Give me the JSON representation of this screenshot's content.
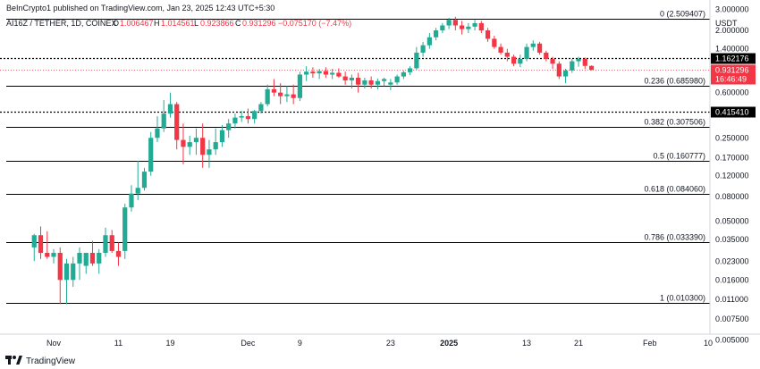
{
  "header": {
    "publisher": "BeInCrypto1 published on TradingView.com, Jan 23, 2025 12:43 UTC+5:30",
    "symbol": "AI16Z / TETHER, 1D, COINEX",
    "ohlc": [
      {
        "label": "O",
        "value": "1.006467"
      },
      {
        "label": "H",
        "value": "1.014561"
      },
      {
        "label": "L",
        "value": "0.923866"
      },
      {
        "label": "C",
        "value": "0.931296"
      }
    ],
    "change": "−0.075170 (−7.47%)"
  },
  "footer": {
    "logo_text": "TradingView"
  },
  "colors": {
    "up": "#22ab94",
    "down": "#f23645",
    "axis": "#d1d4dc",
    "fib_line": "#000000",
    "level_tag": "#000000",
    "price_tag": "#f23645"
  },
  "chart_data": {
    "type": "candlestick",
    "title": "AI16Z / TETHER, 1D, COINEX",
    "scale": "log",
    "ylim": [
      0.0056,
      3.6
    ],
    "y_axis_label": "USDT",
    "y_ticks": [
      "3.000000",
      "2.000000",
      "1.400000",
      "0.600000",
      "0.250000",
      "0.170000",
      "0.120000",
      "0.080000",
      "0.050000",
      "0.035000",
      "0.023000",
      "0.016000",
      "0.011000",
      "0.007500",
      "0.005000"
    ],
    "x_ticks": [
      {
        "label": "Nov",
        "date": "2024-11-01"
      },
      {
        "label": "11",
        "date": "2024-11-11"
      },
      {
        "label": "19",
        "date": "2024-11-19"
      },
      {
        "label": "Dec",
        "date": "2024-12-01"
      },
      {
        "label": "9",
        "date": "2024-12-09"
      },
      {
        "label": "23",
        "date": "2024-12-23"
      },
      {
        "label": "2025",
        "date": "2025-01-01",
        "bold": true
      },
      {
        "label": "13",
        "date": "2025-01-13"
      },
      {
        "label": "21",
        "date": "2025-01-21"
      },
      {
        "label": "Feb",
        "date": "2025-02-01"
      },
      {
        "label": "10",
        "date": "2025-02-10"
      }
    ],
    "fib_levels": [
      {
        "label": "0 (2.509407)",
        "value": 2.509407
      },
      {
        "label": "0.236 (0.685980)",
        "value": 0.68598
      },
      {
        "label": "0.382 (0.307506)",
        "value": 0.307506
      },
      {
        "label": "0.5 (0.160777)",
        "value": 0.160777
      },
      {
        "label": "0.618 (0.084060)",
        "value": 0.08406
      },
      {
        "label": "0.786 (0.033390)",
        "value": 0.03339
      },
      {
        "label": "1 (0.010300)",
        "value": 0.0103
      }
    ],
    "level_lines": [
      {
        "label": "1.162176",
        "value": 1.162176
      },
      {
        "label": "0.415410",
        "value": 0.41541
      }
    ],
    "last_price": {
      "label": "0.931296",
      "countdown": "16:46:49",
      "value": 0.931296
    },
    "candles": [
      {
        "date": "2024-10-29",
        "o": 0.03,
        "h": 0.039,
        "l": 0.023,
        "c": 0.038
      },
      {
        "date": "2024-10-30",
        "o": 0.038,
        "h": 0.045,
        "l": 0.024,
        "c": 0.027
      },
      {
        "date": "2024-10-31",
        "o": 0.027,
        "h": 0.041,
        "l": 0.024,
        "c": 0.025
      },
      {
        "date": "2024-11-01",
        "o": 0.025,
        "h": 0.029,
        "l": 0.022,
        "c": 0.027
      },
      {
        "date": "2024-11-02",
        "o": 0.027,
        "h": 0.03,
        "l": 0.01,
        "c": 0.016
      },
      {
        "date": "2024-11-03",
        "o": 0.016,
        "h": 0.024,
        "l": 0.01,
        "c": 0.022
      },
      {
        "date": "2024-11-04",
        "o": 0.016,
        "h": 0.025,
        "l": 0.014,
        "c": 0.022
      },
      {
        "date": "2024-11-05",
        "o": 0.022,
        "h": 0.03,
        "l": 0.016,
        "c": 0.027
      },
      {
        "date": "2024-11-06",
        "o": 0.021,
        "h": 0.027,
        "l": 0.018,
        "c": 0.027
      },
      {
        "date": "2024-11-07",
        "o": 0.027,
        "h": 0.034,
        "l": 0.021,
        "c": 0.022
      },
      {
        "date": "2024-11-08",
        "o": 0.022,
        "h": 0.029,
        "l": 0.018,
        "c": 0.027
      },
      {
        "date": "2024-11-09",
        "o": 0.027,
        "h": 0.044,
        "l": 0.025,
        "c": 0.038
      },
      {
        "date": "2024-11-10",
        "o": 0.038,
        "h": 0.042,
        "l": 0.027,
        "c": 0.028
      },
      {
        "date": "2024-11-11",
        "o": 0.028,
        "h": 0.033,
        "l": 0.021,
        "c": 0.025
      },
      {
        "date": "2024-11-12",
        "o": 0.028,
        "h": 0.07,
        "l": 0.024,
        "c": 0.065
      },
      {
        "date": "2024-11-13",
        "o": 0.065,
        "h": 0.1,
        "l": 0.06,
        "c": 0.085
      },
      {
        "date": "2024-11-14",
        "o": 0.085,
        "h": 0.16,
        "l": 0.075,
        "c": 0.095
      },
      {
        "date": "2024-11-15",
        "o": 0.095,
        "h": 0.14,
        "l": 0.09,
        "c": 0.13
      },
      {
        "date": "2024-11-16",
        "o": 0.13,
        "h": 0.28,
        "l": 0.12,
        "c": 0.25
      },
      {
        "date": "2024-11-17",
        "o": 0.25,
        "h": 0.38,
        "l": 0.23,
        "c": 0.3
      },
      {
        "date": "2024-11-18",
        "o": 0.3,
        "h": 0.52,
        "l": 0.28,
        "c": 0.4
      },
      {
        "date": "2024-11-19",
        "o": 0.4,
        "h": 0.6,
        "l": 0.37,
        "c": 0.48
      },
      {
        "date": "2024-11-20",
        "o": 0.48,
        "h": 0.5,
        "l": 0.2,
        "c": 0.24
      },
      {
        "date": "2024-11-21",
        "o": 0.24,
        "h": 0.33,
        "l": 0.15,
        "c": 0.21
      },
      {
        "date": "2024-11-22",
        "o": 0.21,
        "h": 0.26,
        "l": 0.18,
        "c": 0.23
      },
      {
        "date": "2024-11-23",
        "o": 0.23,
        "h": 0.3,
        "l": 0.18,
        "c": 0.25
      },
      {
        "date": "2024-11-24",
        "o": 0.25,
        "h": 0.33,
        "l": 0.14,
        "c": 0.18
      },
      {
        "date": "2024-11-25",
        "o": 0.18,
        "h": 0.24,
        "l": 0.14,
        "c": 0.2
      },
      {
        "date": "2024-11-26",
        "o": 0.2,
        "h": 0.3,
        "l": 0.18,
        "c": 0.23
      },
      {
        "date": "2024-11-27",
        "o": 0.23,
        "h": 0.32,
        "l": 0.21,
        "c": 0.29
      },
      {
        "date": "2024-11-28",
        "o": 0.29,
        "h": 0.36,
        "l": 0.25,
        "c": 0.33
      },
      {
        "date": "2024-11-29",
        "o": 0.33,
        "h": 0.4,
        "l": 0.3,
        "c": 0.37
      },
      {
        "date": "2024-11-30",
        "o": 0.37,
        "h": 0.42,
        "l": 0.34,
        "c": 0.38
      },
      {
        "date": "2024-12-01",
        "o": 0.38,
        "h": 0.44,
        "l": 0.33,
        "c": 0.36
      },
      {
        "date": "2024-12-02",
        "o": 0.36,
        "h": 0.43,
        "l": 0.33,
        "c": 0.42
      },
      {
        "date": "2024-12-03",
        "o": 0.42,
        "h": 0.5,
        "l": 0.4,
        "c": 0.48
      },
      {
        "date": "2024-12-04",
        "o": 0.48,
        "h": 0.7,
        "l": 0.46,
        "c": 0.64
      },
      {
        "date": "2024-12-05",
        "o": 0.64,
        "h": 0.78,
        "l": 0.56,
        "c": 0.6
      },
      {
        "date": "2024-12-06",
        "o": 0.6,
        "h": 0.72,
        "l": 0.48,
        "c": 0.56
      },
      {
        "date": "2024-12-07",
        "o": 0.56,
        "h": 0.68,
        "l": 0.5,
        "c": 0.58
      },
      {
        "date": "2024-12-08",
        "o": 0.58,
        "h": 0.7,
        "l": 0.48,
        "c": 0.54
      },
      {
        "date": "2024-12-09",
        "o": 0.54,
        "h": 0.9,
        "l": 0.51,
        "c": 0.85
      },
      {
        "date": "2024-12-10",
        "o": 0.85,
        "h": 1.0,
        "l": 0.75,
        "c": 0.9
      },
      {
        "date": "2024-12-11",
        "o": 0.9,
        "h": 0.98,
        "l": 0.8,
        "c": 0.87
      },
      {
        "date": "2024-12-12",
        "o": 0.87,
        "h": 0.95,
        "l": 0.78,
        "c": 0.91
      },
      {
        "date": "2024-12-13",
        "o": 0.91,
        "h": 0.98,
        "l": 0.8,
        "c": 0.85
      },
      {
        "date": "2024-12-14",
        "o": 0.85,
        "h": 0.95,
        "l": 0.78,
        "c": 0.88
      },
      {
        "date": "2024-12-15",
        "o": 0.88,
        "h": 0.96,
        "l": 0.8,
        "c": 0.82
      },
      {
        "date": "2024-12-16",
        "o": 0.82,
        "h": 0.9,
        "l": 0.7,
        "c": 0.76
      },
      {
        "date": "2024-12-17",
        "o": 0.76,
        "h": 0.85,
        "l": 0.65,
        "c": 0.8
      },
      {
        "date": "2024-12-18",
        "o": 0.8,
        "h": 0.88,
        "l": 0.6,
        "c": 0.7
      },
      {
        "date": "2024-12-19",
        "o": 0.7,
        "h": 0.8,
        "l": 0.65,
        "c": 0.76
      },
      {
        "date": "2024-12-20",
        "o": 0.76,
        "h": 0.82,
        "l": 0.65,
        "c": 0.7
      },
      {
        "date": "2024-12-21",
        "o": 0.7,
        "h": 0.79,
        "l": 0.64,
        "c": 0.75
      },
      {
        "date": "2024-12-22",
        "o": 0.75,
        "h": 0.8,
        "l": 0.68,
        "c": 0.78
      },
      {
        "date": "2024-12-23",
        "o": 0.7,
        "h": 0.78,
        "l": 0.63,
        "c": 0.73
      },
      {
        "date": "2024-12-24",
        "o": 0.73,
        "h": 0.85,
        "l": 0.7,
        "c": 0.82
      },
      {
        "date": "2024-12-25",
        "o": 0.82,
        "h": 0.92,
        "l": 0.78,
        "c": 0.89
      },
      {
        "date": "2024-12-26",
        "o": 0.89,
        "h": 1.0,
        "l": 0.84,
        "c": 0.96
      },
      {
        "date": "2024-12-27",
        "o": 0.96,
        "h": 1.45,
        "l": 0.93,
        "c": 1.3
      },
      {
        "date": "2024-12-28",
        "o": 1.3,
        "h": 1.6,
        "l": 1.2,
        "c": 1.5
      },
      {
        "date": "2024-12-29",
        "o": 1.5,
        "h": 1.9,
        "l": 1.4,
        "c": 1.75
      },
      {
        "date": "2024-12-30",
        "o": 1.75,
        "h": 2.1,
        "l": 1.65,
        "c": 2.0
      },
      {
        "date": "2024-12-31",
        "o": 2.0,
        "h": 2.3,
        "l": 1.9,
        "c": 2.2
      },
      {
        "date": "2025-01-01",
        "o": 2.2,
        "h": 2.55,
        "l": 2.05,
        "c": 2.45
      },
      {
        "date": "2025-01-02",
        "o": 2.45,
        "h": 2.6,
        "l": 2.0,
        "c": 2.2
      },
      {
        "date": "2025-01-03",
        "o": 2.2,
        "h": 2.4,
        "l": 1.85,
        "c": 2.05
      },
      {
        "date": "2025-01-04",
        "o": 2.05,
        "h": 2.3,
        "l": 1.9,
        "c": 2.15
      },
      {
        "date": "2025-01-05",
        "o": 2.15,
        "h": 2.45,
        "l": 2.0,
        "c": 2.3
      },
      {
        "date": "2025-01-06",
        "o": 2.3,
        "h": 2.4,
        "l": 1.9,
        "c": 2.0
      },
      {
        "date": "2025-01-07",
        "o": 2.0,
        "h": 2.1,
        "l": 1.6,
        "c": 1.7
      },
      {
        "date": "2025-01-08",
        "o": 1.7,
        "h": 1.8,
        "l": 1.4,
        "c": 1.45
      },
      {
        "date": "2025-01-09",
        "o": 1.45,
        "h": 1.55,
        "l": 1.25,
        "c": 1.3
      },
      {
        "date": "2025-01-10",
        "o": 1.3,
        "h": 1.4,
        "l": 1.1,
        "c": 1.2
      },
      {
        "date": "2025-01-11",
        "o": 1.2,
        "h": 1.25,
        "l": 1.0,
        "c": 1.05
      },
      {
        "date": "2025-01-12",
        "o": 1.05,
        "h": 1.25,
        "l": 0.98,
        "c": 1.15
      },
      {
        "date": "2025-01-13",
        "o": 1.15,
        "h": 1.55,
        "l": 1.1,
        "c": 1.45
      },
      {
        "date": "2025-01-14",
        "o": 1.45,
        "h": 1.65,
        "l": 1.35,
        "c": 1.55
      },
      {
        "date": "2025-01-15",
        "o": 1.55,
        "h": 1.6,
        "l": 1.25,
        "c": 1.3
      },
      {
        "date": "2025-01-16",
        "o": 1.3,
        "h": 1.35,
        "l": 1.1,
        "c": 1.15
      },
      {
        "date": "2025-01-17",
        "o": 1.15,
        "h": 1.2,
        "l": 0.95,
        "c": 1.05
      },
      {
        "date": "2025-01-18",
        "o": 1.05,
        "h": 1.1,
        "l": 0.78,
        "c": 0.82
      },
      {
        "date": "2025-01-19",
        "o": 0.82,
        "h": 0.95,
        "l": 0.72,
        "c": 0.92
      },
      {
        "date": "2025-01-20",
        "o": 0.92,
        "h": 1.15,
        "l": 0.88,
        "c": 1.1
      },
      {
        "date": "2025-01-21",
        "o": 1.1,
        "h": 1.2,
        "l": 0.99,
        "c": 1.15
      },
      {
        "date": "2025-01-22",
        "o": 1.15,
        "h": 1.18,
        "l": 0.95,
        "c": 1.006
      },
      {
        "date": "2025-01-23",
        "o": 1.006467,
        "h": 1.014561,
        "l": 0.923866,
        "c": 0.931296
      }
    ]
  }
}
